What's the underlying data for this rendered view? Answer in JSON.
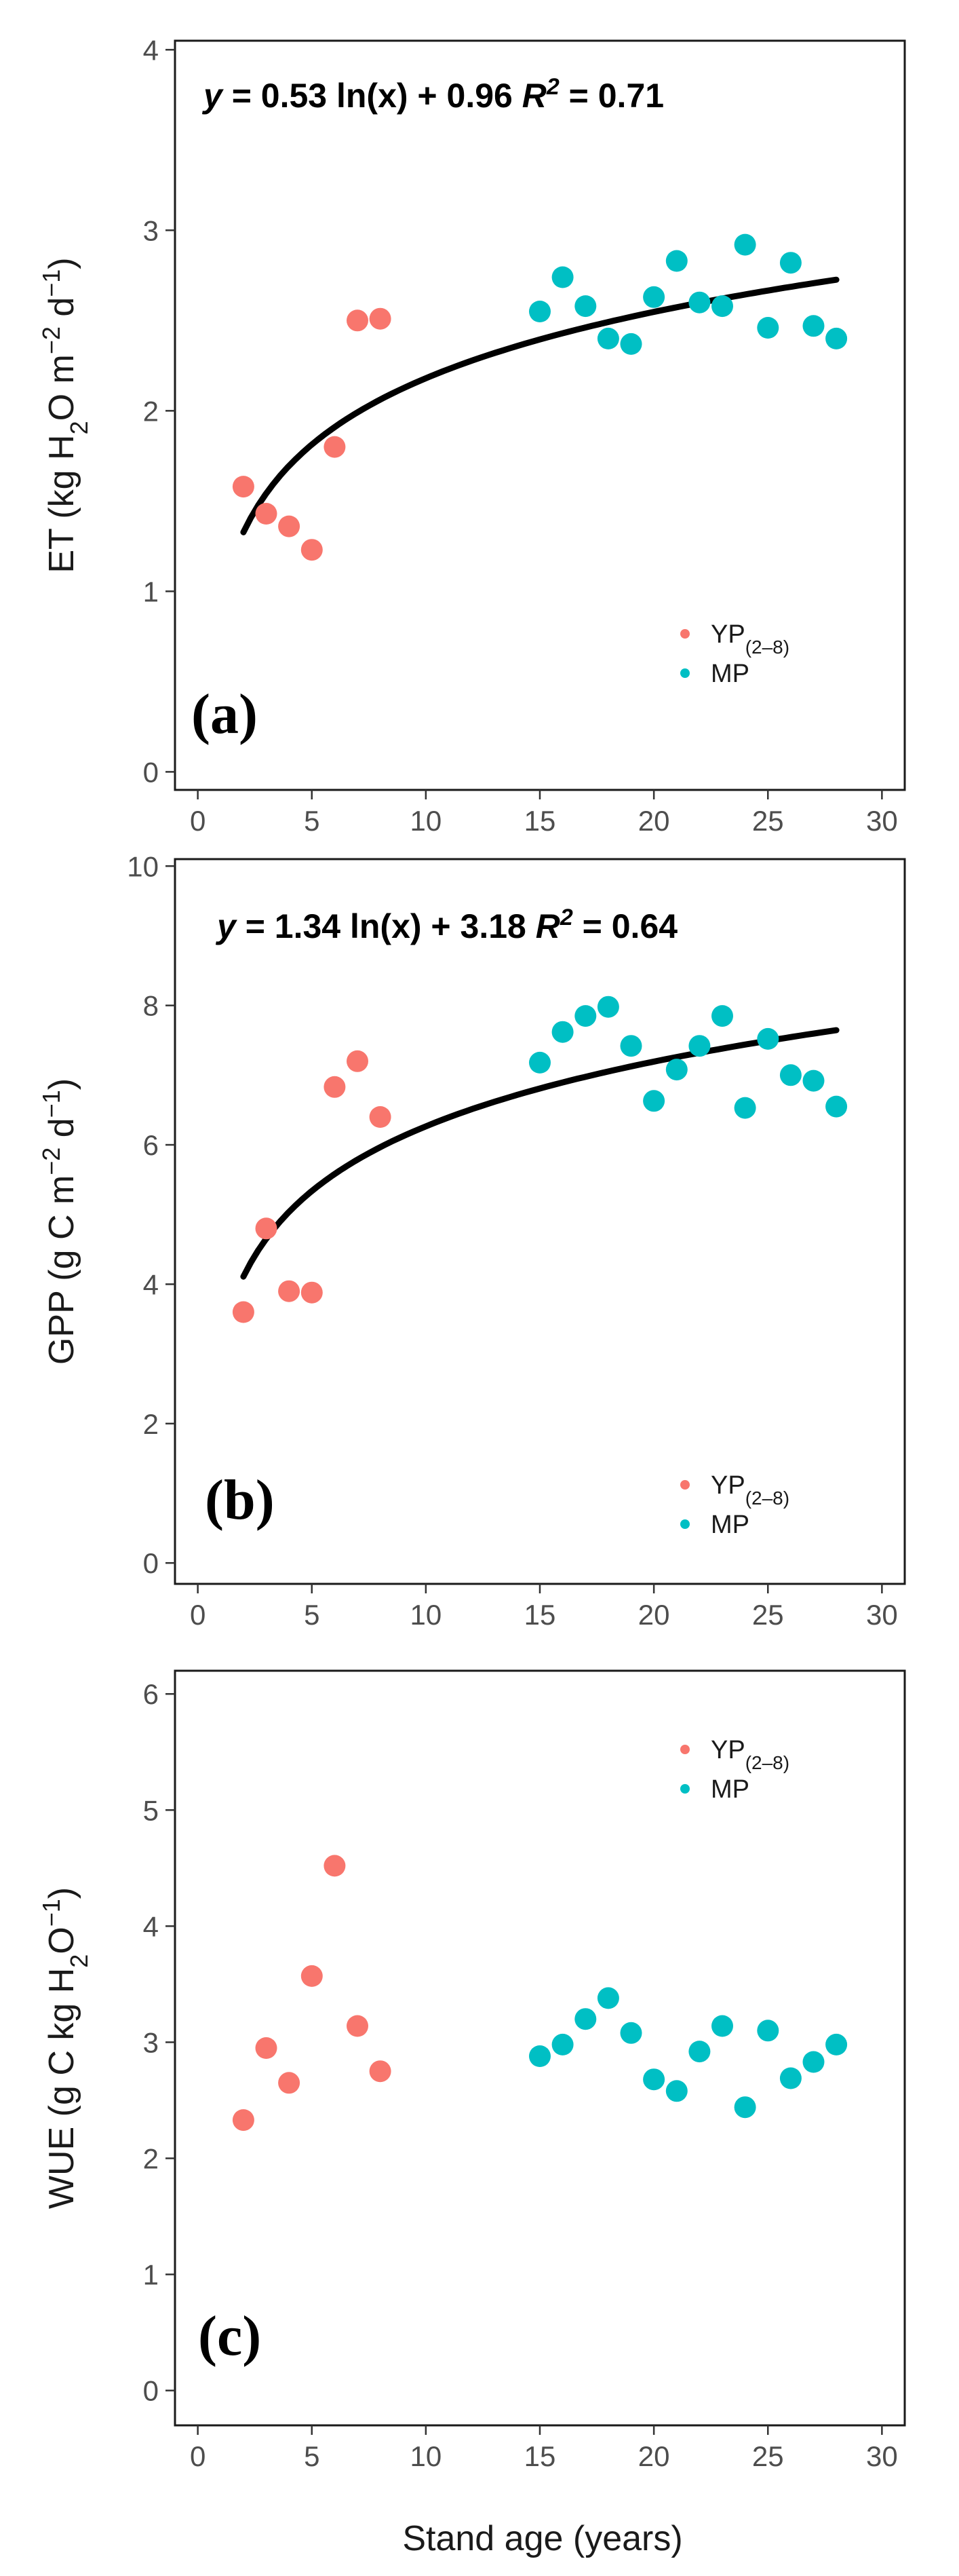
{
  "colors": {
    "young": "#F8766D",
    "mature": "#00BFC4"
  },
  "xlabel": "Stand age (years)",
  "chart_data": [
    {
      "type": "scatter",
      "tag": "(a)",
      "ylabel": {
        "main": "ET (kg H",
        "sub2": "2",
        "mid": "O m",
        "sup1": "−2",
        "mid2": " d",
        "sup2": "−1",
        "end": ")"
      },
      "equation": {
        "y": "y",
        "body": " = 0.53 ln(x) + 0.96  ",
        "r": "R",
        "rsup": "2",
        "rest": " = 0.71"
      },
      "fit": {
        "a": 0.53,
        "b": 0.96,
        "xmin": 2,
        "xmax": 28
      },
      "xlim": [
        -1,
        31
      ],
      "ylim": [
        -0.1,
        4.05
      ],
      "xticks": [
        0,
        5,
        10,
        15,
        20,
        25,
        30
      ],
      "yticks": [
        0,
        1,
        2,
        3,
        4
      ],
      "legend": [
        {
          "label": "YP",
          "sub": "(2–8)"
        },
        {
          "label": "MP",
          "sub": ""
        }
      ],
      "series": [
        {
          "name": "YP(2–8)",
          "x": [
            2,
            3,
            4,
            5,
            6,
            7,
            8
          ],
          "y": [
            1.58,
            1.43,
            1.36,
            1.23,
            1.8,
            2.5,
            2.51
          ]
        },
        {
          "name": "MP",
          "x": [
            15,
            16,
            17,
            18,
            19,
            20,
            21,
            22,
            23,
            24,
            25,
            26,
            27,
            28
          ],
          "y": [
            2.55,
            2.74,
            2.58,
            2.4,
            2.37,
            2.63,
            2.83,
            2.6,
            2.58,
            2.92,
            2.46,
            2.82,
            2.47,
            2.4
          ]
        }
      ]
    },
    {
      "type": "scatter",
      "tag": "(b)",
      "ylabel": {
        "main": "GPP (g C m",
        "sub2": "",
        "mid": "",
        "sup1": "−2",
        "mid2": " d",
        "sup2": "−1",
        "end": ")"
      },
      "equation": {
        "y": "y",
        "body": " = 1.34 ln(x) + 3.18 ",
        "r": "R",
        "rsup": "2",
        "rest": " = 0.64"
      },
      "fit": {
        "a": 1.34,
        "b": 3.18,
        "xmin": 2,
        "xmax": 28
      },
      "xlim": [
        -1,
        31
      ],
      "ylim": [
        -0.3,
        10.1
      ],
      "xticks": [
        0,
        5,
        10,
        15,
        20,
        25,
        30
      ],
      "yticks": [
        0,
        2,
        4,
        6,
        8,
        10
      ],
      "legend": [
        {
          "label": "YP",
          "sub": "(2–8)"
        },
        {
          "label": "MP",
          "sub": ""
        }
      ],
      "series": [
        {
          "name": "YP(2–8)",
          "x": [
            2,
            3,
            4,
            5,
            6,
            7,
            8
          ],
          "y": [
            3.6,
            4.8,
            3.9,
            3.88,
            6.83,
            7.2,
            6.4
          ]
        },
        {
          "name": "MP",
          "x": [
            15,
            16,
            17,
            18,
            19,
            20,
            21,
            22,
            23,
            24,
            25,
            26,
            27,
            28
          ],
          "y": [
            7.18,
            7.62,
            7.85,
            7.98,
            7.42,
            6.63,
            7.08,
            7.42,
            7.85,
            6.53,
            7.52,
            7.0,
            6.92,
            6.55
          ]
        }
      ]
    },
    {
      "type": "scatter",
      "tag": "(c)",
      "ylabel": {
        "main": "WUE (g C kg H",
        "sub2": "2",
        "mid": "O",
        "sup1": "−1",
        "mid2": "",
        "sup2": "",
        "end": ")"
      },
      "equation": null,
      "fit": null,
      "xlim": [
        -1,
        31
      ],
      "ylim": [
        -0.3,
        6.2
      ],
      "xticks": [
        0,
        5,
        10,
        15,
        20,
        25,
        30
      ],
      "yticks": [
        0,
        1,
        2,
        3,
        4,
        5,
        6
      ],
      "legend": [
        {
          "label": "YP",
          "sub": "(2–8)"
        },
        {
          "label": "MP",
          "sub": ""
        }
      ],
      "series": [
        {
          "name": "YP(2–8)",
          "x": [
            2,
            3,
            4,
            5,
            6,
            7,
            8
          ],
          "y": [
            2.33,
            2.95,
            2.65,
            3.57,
            4.52,
            3.14,
            2.75
          ]
        },
        {
          "name": "MP",
          "x": [
            15,
            16,
            17,
            18,
            19,
            20,
            21,
            22,
            23,
            24,
            25,
            26,
            27,
            28
          ],
          "y": [
            2.88,
            2.98,
            3.2,
            3.38,
            3.08,
            2.68,
            2.58,
            2.92,
            3.14,
            2.44,
            3.1,
            2.69,
            2.83,
            2.98
          ]
        }
      ]
    }
  ]
}
